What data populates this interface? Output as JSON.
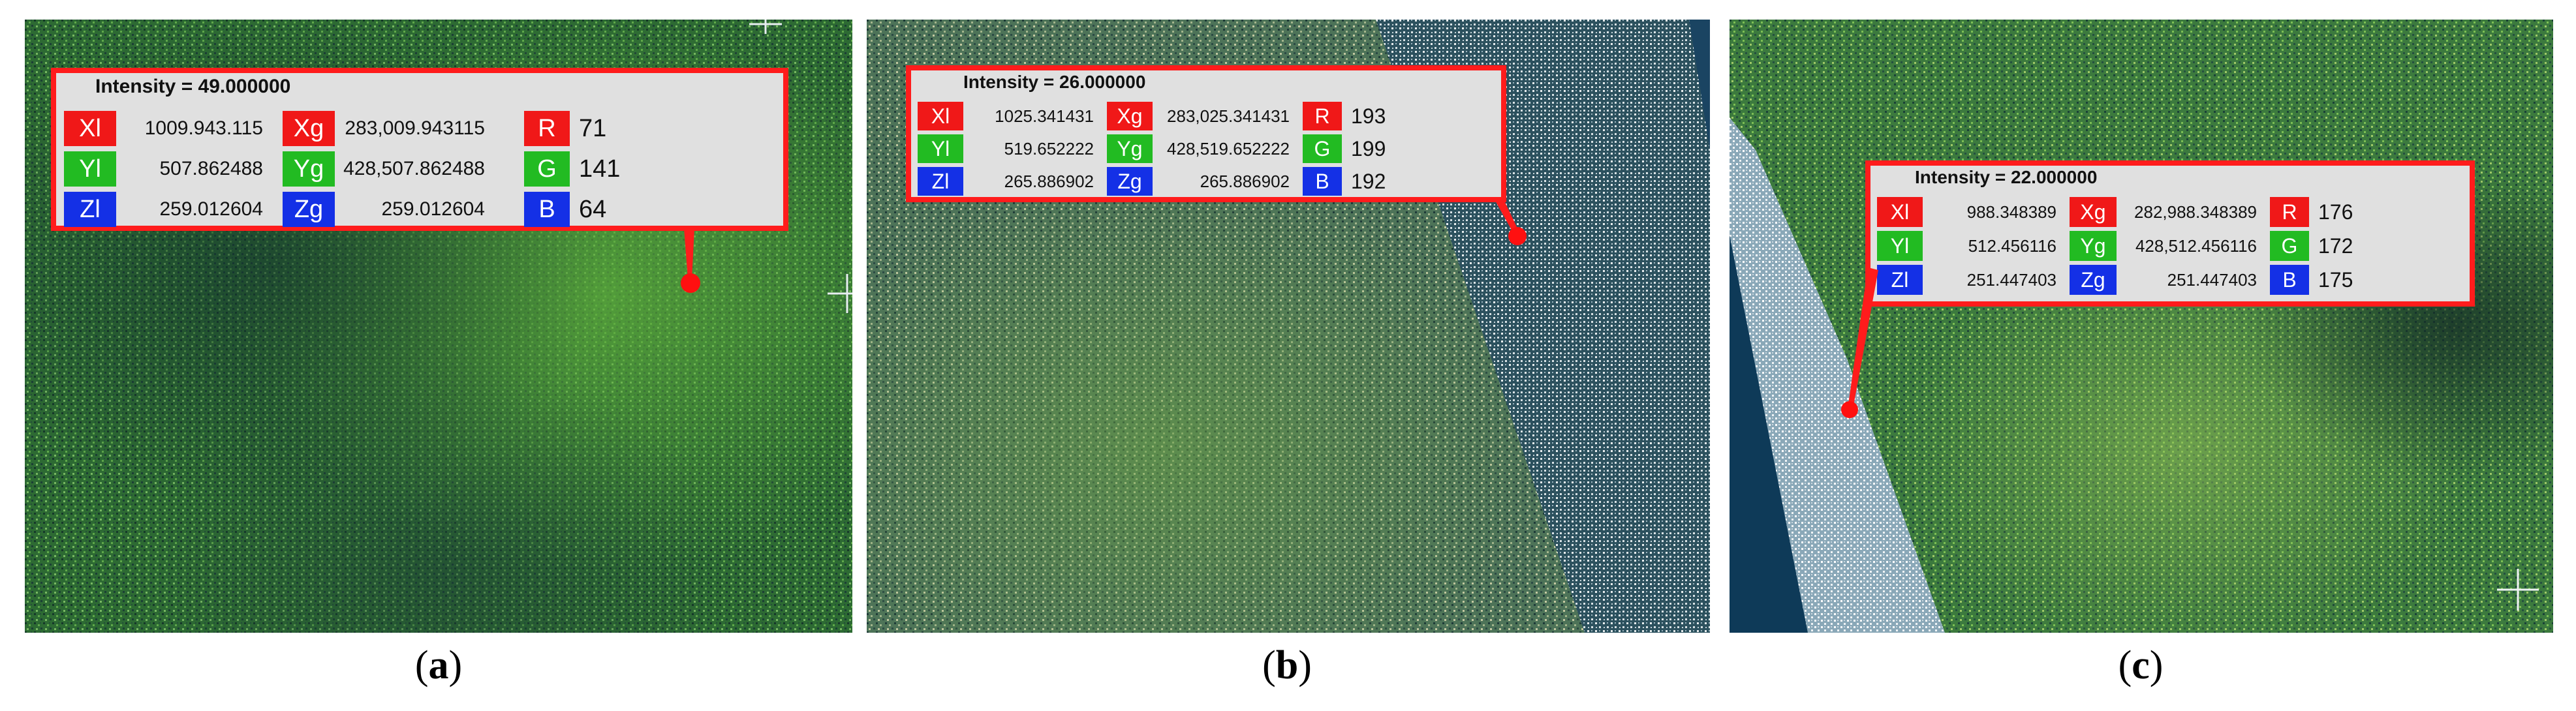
{
  "colors": {
    "callout_border": "#ff1c1c",
    "callout_fill": "#e0e0e0",
    "tag_red": "#f01818",
    "tag_green": "#22bb22",
    "tag_blue": "#1430e6",
    "vegetation_dark": "#1f4a2a",
    "vegetation_light": "#4f9a3c",
    "water": "#12405e",
    "sand": "#d8e2ea"
  },
  "panels": [
    {
      "caption": "a",
      "intensity_label": "Intensity = 49.000000",
      "rows": [
        {
          "local_label": "Xl",
          "local_value": "1009.943.115",
          "global_label": "Xg",
          "global_value": "283,009.943115",
          "rgb_label": "R",
          "rgb_value": "71"
        },
        {
          "local_label": "Yl",
          "local_value": "507.862488",
          "global_label": "Yg",
          "global_value": "428,507.862488",
          "rgb_label": "G",
          "rgb_value": "141"
        },
        {
          "local_label": "Zl",
          "local_value": "259.012604",
          "global_label": "Zg",
          "global_value": "259.012604",
          "rgb_label": "B",
          "rgb_value": "64"
        }
      ]
    },
    {
      "caption": "b",
      "intensity_label": "Intensity = 26.000000",
      "rows": [
        {
          "local_label": "Xl",
          "local_value": "1025.341431",
          "global_label": "Xg",
          "global_value": "283,025.341431",
          "rgb_label": "R",
          "rgb_value": "193"
        },
        {
          "local_label": "Yl",
          "local_value": "519.652222",
          "global_label": "Yg",
          "global_value": "428,519.652222",
          "rgb_label": "G",
          "rgb_value": "199"
        },
        {
          "local_label": "Zl",
          "local_value": "265.886902",
          "global_label": "Zg",
          "global_value": "265.886902",
          "rgb_label": "B",
          "rgb_value": "192"
        }
      ]
    },
    {
      "caption": "c",
      "intensity_label": "Intensity = 22.000000",
      "rows": [
        {
          "local_label": "Xl",
          "local_value": "988.348389",
          "global_label": "Xg",
          "global_value": "282,988.348389",
          "rgb_label": "R",
          "rgb_value": "176"
        },
        {
          "local_label": "Yl",
          "local_value": "512.456116",
          "global_label": "Yg",
          "global_value": "428,512.456116",
          "rgb_label": "G",
          "rgb_value": "172"
        },
        {
          "local_label": "Zl",
          "local_value": "251.447403",
          "global_label": "Zg",
          "global_value": "251.447403",
          "rgb_label": "B",
          "rgb_value": "175"
        }
      ]
    }
  ]
}
